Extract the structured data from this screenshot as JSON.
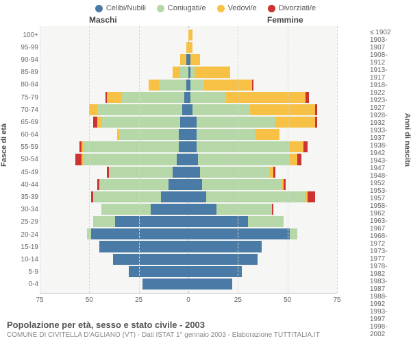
{
  "chart": {
    "type": "population-pyramid",
    "legend": [
      {
        "label": "Celibi/Nubili",
        "color": "#4a7ba6"
      },
      {
        "label": "Coniugati/e",
        "color": "#b6d7a8"
      },
      {
        "label": "Vedovi/e",
        "color": "#f6c145"
      },
      {
        "label": "Divorziati/e",
        "color": "#cc3333"
      }
    ],
    "header_male": "Maschi",
    "header_female": "Femmine",
    "ylabel_left": "Fasce di età",
    "ylabel_right": "Anni di nascita",
    "xmax": 75,
    "xticks": [
      75,
      50,
      25,
      0,
      25,
      50,
      75
    ],
    "plot_bg": "#f6f6f4",
    "grid_color": "#d5d5d5",
    "label_color": "#666666",
    "font_size_labels": 10,
    "font_size_axis": 11,
    "rows": [
      {
        "age": "100+",
        "birth": "≤ 1902",
        "m": [
          0,
          0,
          0,
          0
        ],
        "f": [
          0,
          0,
          2,
          0
        ]
      },
      {
        "age": "95-99",
        "birth": "1903-1907",
        "m": [
          0,
          0,
          1,
          0
        ],
        "f": [
          0,
          0,
          2,
          0
        ]
      },
      {
        "age": "90-94",
        "birth": "1908-1912",
        "m": [
          1,
          0,
          3,
          0
        ],
        "f": [
          1,
          0,
          5,
          0
        ]
      },
      {
        "age": "85-89",
        "birth": "1913-1917",
        "m": [
          0,
          4,
          4,
          0
        ],
        "f": [
          1,
          2,
          18,
          0
        ]
      },
      {
        "age": "80-84",
        "birth": "1918-1922",
        "m": [
          1,
          14,
          5,
          0
        ],
        "f": [
          1,
          7,
          24,
          1
        ]
      },
      {
        "age": "75-79",
        "birth": "1923-1927",
        "m": [
          2,
          32,
          7,
          1
        ],
        "f": [
          1,
          18,
          40,
          2
        ]
      },
      {
        "age": "70-74",
        "birth": "1928-1932",
        "m": [
          3,
          43,
          4,
          0
        ],
        "f": [
          2,
          29,
          33,
          1
        ]
      },
      {
        "age": "65-69",
        "birth": "1933-1937",
        "m": [
          4,
          40,
          2,
          2
        ],
        "f": [
          4,
          40,
          20,
          1
        ]
      },
      {
        "age": "60-64",
        "birth": "1938-1942",
        "m": [
          5,
          30,
          1,
          0
        ],
        "f": [
          4,
          30,
          12,
          0
        ]
      },
      {
        "age": "55-59",
        "birth": "1943-1947",
        "m": [
          5,
          48,
          1,
          1
        ],
        "f": [
          4,
          47,
          7,
          2
        ]
      },
      {
        "age": "50-54",
        "birth": "1948-1952",
        "m": [
          6,
          47,
          1,
          3
        ],
        "f": [
          5,
          46,
          4,
          2
        ]
      },
      {
        "age": "45-49",
        "birth": "1953-1957",
        "m": [
          8,
          32,
          0,
          1
        ],
        "f": [
          6,
          35,
          2,
          1
        ]
      },
      {
        "age": "40-44",
        "birth": "1958-1962",
        "m": [
          10,
          35,
          0,
          1
        ],
        "f": [
          7,
          40,
          1,
          1
        ]
      },
      {
        "age": "35-39",
        "birth": "1963-1967",
        "m": [
          14,
          34,
          0,
          1
        ],
        "f": [
          9,
          50,
          1,
          4
        ]
      },
      {
        "age": "30-34",
        "birth": "1968-1972",
        "m": [
          19,
          25,
          0,
          0
        ],
        "f": [
          14,
          28,
          0,
          1
        ]
      },
      {
        "age": "25-29",
        "birth": "1973-1977",
        "m": [
          37,
          11,
          0,
          0
        ],
        "f": [
          30,
          18,
          0,
          0
        ]
      },
      {
        "age": "20-24",
        "birth": "1978-1982",
        "m": [
          49,
          2,
          0,
          0
        ],
        "f": [
          51,
          4,
          0,
          0
        ]
      },
      {
        "age": "15-19",
        "birth": "1983-1987",
        "m": [
          45,
          0,
          0,
          0
        ],
        "f": [
          37,
          0,
          0,
          0
        ]
      },
      {
        "age": "10-14",
        "birth": "1988-1992",
        "m": [
          38,
          0,
          0,
          0
        ],
        "f": [
          35,
          0,
          0,
          0
        ]
      },
      {
        "age": "5-9",
        "birth": "1993-1997",
        "m": [
          30,
          0,
          0,
          0
        ],
        "f": [
          27,
          0,
          0,
          0
        ]
      },
      {
        "age": "0-4",
        "birth": "1998-2002",
        "m": [
          23,
          0,
          0,
          0
        ],
        "f": [
          22,
          0,
          0,
          0
        ]
      }
    ]
  },
  "footer": {
    "title": "Popolazione per età, sesso e stato civile - 2003",
    "subtitle": "COMUNE DI CIVITELLA D'AGLIANO (VT) - Dati ISTAT 1° gennaio 2003 - Elaborazione TUTTITALIA.IT"
  }
}
